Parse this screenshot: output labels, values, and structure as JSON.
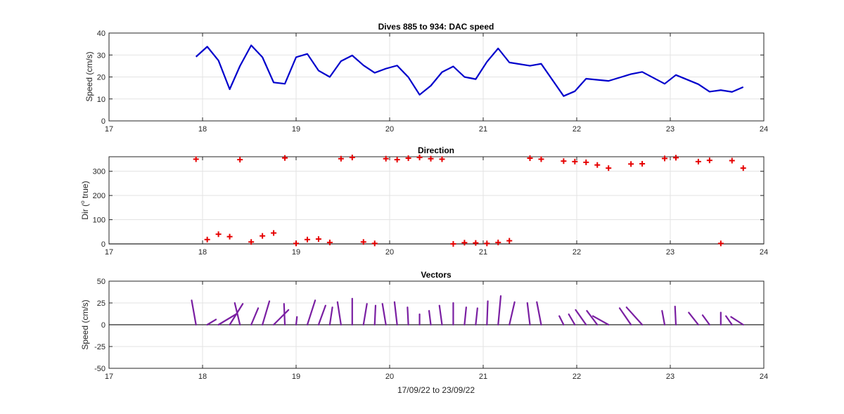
{
  "chart_data": [
    {
      "type": "line",
      "title": "Dives 885 to 934: DAC speed",
      "xlabel": "",
      "ylabel": "Speed (cm/s)",
      "xlim": [
        17,
        24
      ],
      "ylim": [
        0,
        40
      ],
      "xticks": [
        17,
        18,
        19,
        20,
        21,
        22,
        23,
        24
      ],
      "yticks": [
        0,
        10,
        20,
        30,
        40
      ],
      "grid": true,
      "color": "#0000cc",
      "series": [
        {
          "x": [
            17.93,
            18.05,
            18.17,
            18.29,
            18.4,
            18.52,
            18.64,
            18.76,
            18.88,
            19.0,
            19.12,
            19.24,
            19.36,
            19.48,
            19.6,
            19.72,
            19.84,
            19.96,
            20.08,
            20.2,
            20.32,
            20.44,
            20.56,
            20.68,
            20.8,
            20.92,
            21.04,
            21.16,
            21.28,
            21.5,
            21.62,
            21.86,
            21.98,
            22.1,
            22.34,
            22.58,
            22.7,
            22.94,
            23.06,
            23.3,
            23.42,
            23.54,
            23.66,
            23.78
          ],
          "y": [
            29.2,
            33.8,
            27.5,
            14.4,
            25.0,
            34.4,
            29.0,
            17.5,
            16.9,
            29.0,
            30.5,
            22.9,
            20.0,
            27.2,
            29.8,
            25.3,
            21.9,
            23.8,
            25.2,
            19.9,
            11.9,
            16.0,
            22.2,
            24.8,
            20.0,
            19.0,
            26.9,
            33.0,
            26.6,
            25.1,
            26.0,
            11.3,
            13.5,
            19.2,
            18.2,
            21.3,
            22.3,
            16.9,
            20.9,
            16.7,
            13.3,
            14.0,
            13.2,
            15.4
          ]
        }
      ]
    },
    {
      "type": "scatter",
      "title": "Direction",
      "xlabel": "",
      "ylabel": "Dir (",
      "ylabel_sup": "o",
      "ylabel_end": " true)",
      "xlim": [
        17,
        24
      ],
      "ylim": [
        0,
        360
      ],
      "xticks": [
        17,
        18,
        19,
        20,
        21,
        22,
        23,
        24
      ],
      "yticks": [
        0,
        100,
        200,
        300
      ],
      "grid": true,
      "marker": "+",
      "color": "#e60000",
      "series": [
        {
          "x": [
            17.93,
            18.05,
            18.17,
            18.29,
            18.4,
            18.52,
            18.64,
            18.76,
            18.88,
            19.0,
            19.12,
            19.24,
            19.36,
            19.48,
            19.6,
            19.72,
            19.84,
            19.96,
            20.08,
            20.2,
            20.32,
            20.44,
            20.56,
            20.68,
            20.8,
            20.92,
            21.04,
            21.16,
            21.28,
            21.5,
            21.62,
            21.86,
            21.98,
            22.1,
            22.22,
            22.34,
            22.58,
            22.7,
            22.94,
            23.06,
            23.3,
            23.42,
            23.54,
            23.66,
            23.78
          ],
          "y": [
            350,
            18,
            40,
            30,
            348,
            8,
            33,
            45,
            355,
            2,
            18,
            20,
            6,
            352,
            357,
            8,
            2,
            352,
            348,
            354,
            357,
            352,
            350,
            0,
            5,
            4,
            2,
            6,
            13,
            354,
            350,
            342,
            340,
            337,
            326,
            313,
            330,
            331,
            353,
            356,
            340,
            345,
            2,
            344,
            313
          ]
        }
      ]
    },
    {
      "type": "vector",
      "title": "Vectors",
      "xlabel": "17/09/22 to 23/09/22",
      "ylabel": "Speed (cm/s)",
      "xlim": [
        17,
        24
      ],
      "ylim": [
        -50,
        50
      ],
      "xticks": [
        17,
        18,
        19,
        20,
        21,
        22,
        23,
        24
      ],
      "yticks": [
        -50,
        -25,
        0,
        25,
        50
      ],
      "grid": true,
      "color": "#7a1fa2",
      "series": [
        {
          "x": [
            17.93,
            18.05,
            18.17,
            18.29,
            18.4,
            18.52,
            18.64,
            18.76,
            18.88,
            19.0,
            19.12,
            19.24,
            19.36,
            19.48,
            19.6,
            19.72,
            19.84,
            19.96,
            20.08,
            20.2,
            20.32,
            20.44,
            20.56,
            20.68,
            20.8,
            20.92,
            21.04,
            21.16,
            21.28,
            21.5,
            21.62,
            21.86,
            21.98,
            22.1,
            22.22,
            22.34,
            22.58,
            22.7,
            22.94,
            23.06,
            23.3,
            23.42,
            23.54,
            23.66,
            23.78
          ],
          "u": [
            -5,
            10,
            20,
            15,
            -6,
            8,
            8,
            17,
            -1,
            1,
            9,
            8,
            3,
            -4,
            0,
            4,
            1,
            -4,
            -3,
            -1,
            0,
            -2,
            -3,
            0,
            2,
            2,
            1,
            3,
            6,
            -3,
            -5,
            -5,
            -7,
            -12,
            -12,
            -18,
            -13,
            -18,
            -3,
            -1,
            -11,
            -8,
            0,
            -7,
            -14
          ],
          "v": [
            28,
            6,
            12,
            24,
            25,
            19,
            27,
            17,
            24,
            9,
            28,
            22,
            20,
            26,
            30,
            24,
            22,
            24,
            26,
            20,
            12,
            16,
            22,
            25,
            20,
            19,
            27,
            33,
            26,
            25,
            26,
            10,
            12,
            17,
            16,
            10,
            19,
            20,
            16,
            21,
            14,
            11,
            14,
            10,
            9
          ]
        }
      ]
    }
  ]
}
